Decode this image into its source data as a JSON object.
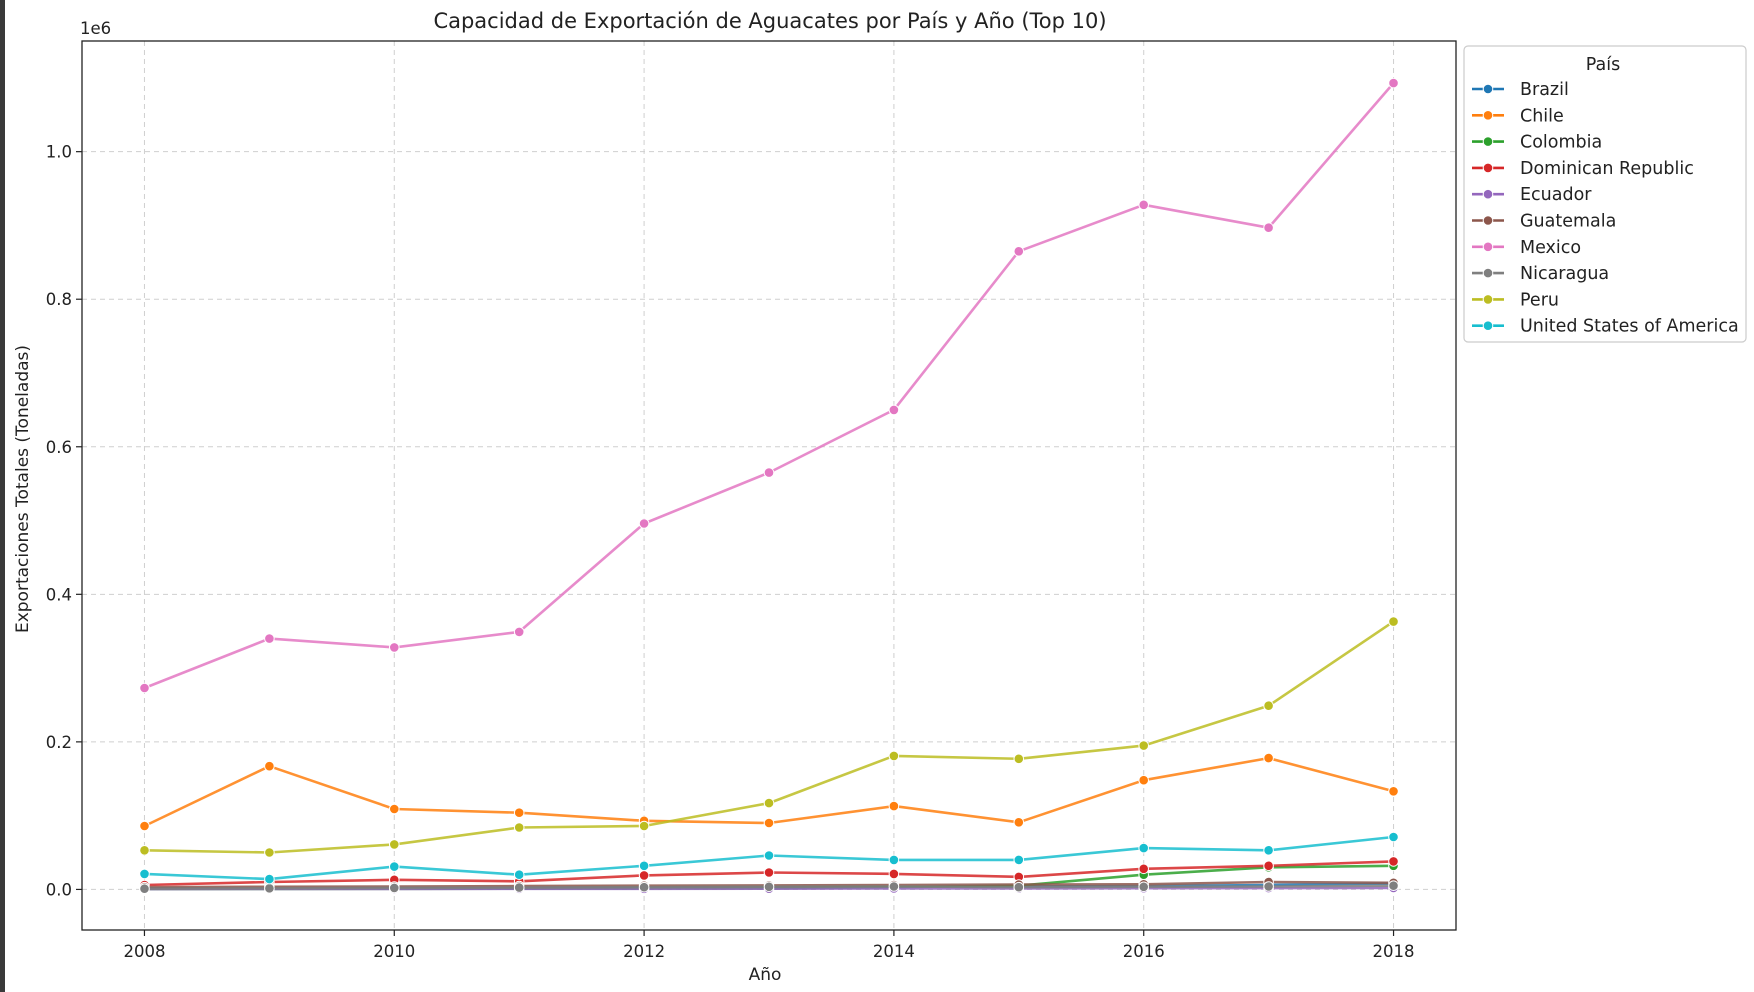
{
  "chart_data": {
    "type": "line",
    "title": "Capacidad de Exportación de Aguacates por País y Año (Top 10)",
    "xlabel": "Año",
    "ylabel": "Exportaciones Totales (Toneladas)",
    "y_offset_label": "1e6",
    "xlim": [
      2007.5,
      2018.5
    ],
    "ylim": [
      -55000,
      1150000
    ],
    "xticks": [
      2008,
      2010,
      2012,
      2014,
      2016,
      2018
    ],
    "xtick_labels": [
      "2008",
      "2010",
      "2012",
      "2014",
      "2016",
      "2018"
    ],
    "yticks": [
      0,
      200000,
      400000,
      600000,
      800000,
      1000000
    ],
    "ytick_labels": [
      "0.0",
      "0.2",
      "0.4",
      "0.6",
      "0.8",
      "1.0"
    ],
    "grid": true,
    "legend_title": "País",
    "legend_position": "outside-top-right",
    "x": [
      2008,
      2009,
      2010,
      2011,
      2012,
      2013,
      2014,
      2015,
      2016,
      2017,
      2018
    ],
    "series": [
      {
        "name": "Brazil",
        "color": "#1f77b4",
        "values": [
          1500,
          1600,
          1800,
          2000,
          2500,
          3000,
          3500,
          4000,
          4500,
          6000,
          8000
        ]
      },
      {
        "name": "Chile",
        "color": "#ff7f0e",
        "values": [
          86000,
          167000,
          109000,
          104000,
          93000,
          90000,
          113000,
          91000,
          148000,
          178000,
          133000
        ]
      },
      {
        "name": "Colombia",
        "color": "#2ca02c",
        "values": [
          500,
          600,
          800,
          1000,
          1200,
          1500,
          3000,
          5000,
          20000,
          30000,
          32000
        ]
      },
      {
        "name": "Dominican Republic",
        "color": "#d62728",
        "values": [
          6000,
          10000,
          13000,
          11000,
          19000,
          23000,
          21000,
          17000,
          28000,
          32000,
          38000
        ]
      },
      {
        "name": "Ecuador",
        "color": "#9467bd",
        "values": [
          500,
          600,
          700,
          800,
          900,
          1000,
          1200,
          1400,
          1600,
          1800,
          2000
        ]
      },
      {
        "name": "Guatemala",
        "color": "#8c564b",
        "values": [
          3000,
          3500,
          4000,
          4500,
          5000,
          5500,
          6000,
          6500,
          7000,
          10000,
          9000
        ]
      },
      {
        "name": "Mexico",
        "color": "#e377c2",
        "values": [
          273000,
          340000,
          328000,
          349000,
          496000,
          565000,
          650000,
          865000,
          928000,
          897000,
          1093000
        ]
      },
      {
        "name": "Nicaragua",
        "color": "#7f7f7f",
        "values": [
          1000,
          1500,
          2000,
          2500,
          3000,
          3500,
          4000,
          3000,
          3500,
          4000,
          5000
        ]
      },
      {
        "name": "Peru",
        "color": "#bcbd22",
        "values": [
          53000,
          50000,
          61000,
          84000,
          86000,
          117000,
          181000,
          177000,
          195000,
          249000,
          363000
        ]
      },
      {
        "name": "United States of America",
        "color": "#17becf",
        "values": [
          21000,
          14000,
          31000,
          20000,
          32000,
          46000,
          40000,
          40000,
          56000,
          53000,
          71000
        ]
      }
    ]
  }
}
